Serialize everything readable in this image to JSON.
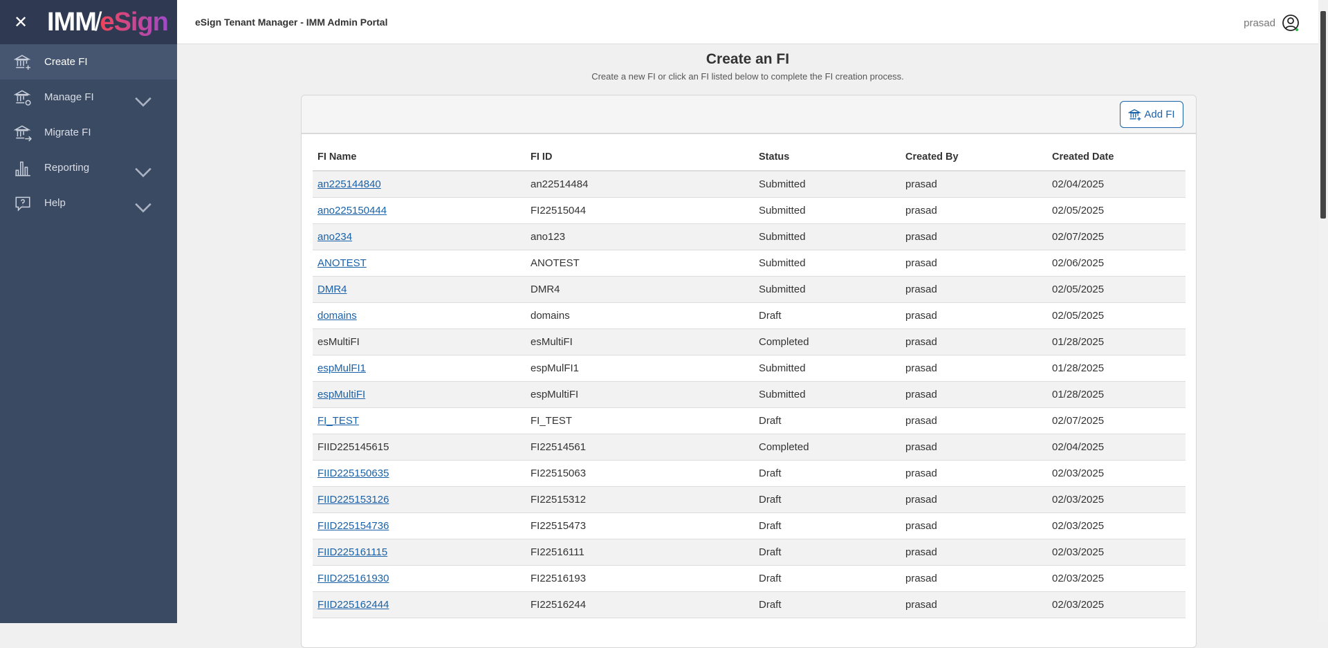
{
  "app": {
    "logo_text_1": "IMM",
    "logo_text_2": "eSign",
    "header_title": "eSign Tenant Manager - IMM Admin Portal",
    "user_name": "prasad",
    "accent": "#1a61a8",
    "online_status_color": "#2eb84b"
  },
  "sidebar": {
    "items": [
      {
        "label": "Create FI",
        "icon": "bank-plus-icon",
        "active": true,
        "expandable": false
      },
      {
        "label": "Manage FI",
        "icon": "bank-gear-icon",
        "expandable": true
      },
      {
        "label": "Migrate FI",
        "icon": "bank-arrow-icon",
        "expandable": false
      },
      {
        "label": "Reporting",
        "icon": "bar-chart-icon",
        "expandable": true
      },
      {
        "label": "Help",
        "icon": "help-bubble-icon",
        "expandable": true
      }
    ]
  },
  "main": {
    "title": "Create an FI",
    "subtitle": "Create a new FI or click an FI listed below to complete the FI creation process.",
    "add_button": "Add FI",
    "columns": [
      "FI Name",
      "FI ID",
      "Status",
      "Created By",
      "Created Date"
    ],
    "rows": [
      {
        "name": "an225144840",
        "id": "an22514484",
        "status": "Submitted",
        "by": "prasad",
        "date": "02/04/2025",
        "link": true
      },
      {
        "name": "ano225150444",
        "id": "FI22515044",
        "status": "Submitted",
        "by": "prasad",
        "date": "02/05/2025",
        "link": true
      },
      {
        "name": "ano234",
        "id": "ano123",
        "status": "Submitted",
        "by": "prasad",
        "date": "02/07/2025",
        "link": true
      },
      {
        "name": "ANOTEST",
        "id": "ANOTEST",
        "status": "Submitted",
        "by": "prasad",
        "date": "02/06/2025",
        "link": true
      },
      {
        "name": "DMR4",
        "id": "DMR4",
        "status": "Submitted",
        "by": "prasad",
        "date": "02/05/2025",
        "link": true
      },
      {
        "name": "domains",
        "id": "domains",
        "status": "Draft",
        "by": "prasad",
        "date": "02/05/2025",
        "link": true
      },
      {
        "name": "esMultiFI",
        "id": "esMultiFI",
        "status": "Completed",
        "by": "prasad",
        "date": "01/28/2025",
        "link": false
      },
      {
        "name": "espMulFI1",
        "id": "espMulFI1",
        "status": "Submitted",
        "by": "prasad",
        "date": "01/28/2025",
        "link": true
      },
      {
        "name": "espMultiFI",
        "id": "espMultiFI",
        "status": "Submitted",
        "by": "prasad",
        "date": "01/28/2025",
        "link": true
      },
      {
        "name": "FI_TEST",
        "id": "FI_TEST",
        "status": "Draft",
        "by": "prasad",
        "date": "02/07/2025",
        "link": true
      },
      {
        "name": "FIID225145615",
        "id": "FI22514561",
        "status": "Completed",
        "by": "prasad",
        "date": "02/04/2025",
        "link": false
      },
      {
        "name": "FIID225150635",
        "id": "FI22515063",
        "status": "Draft",
        "by": "prasad",
        "date": "02/03/2025",
        "link": true
      },
      {
        "name": "FIID225153126",
        "id": "FI22515312",
        "status": "Draft",
        "by": "prasad",
        "date": "02/03/2025",
        "link": true
      },
      {
        "name": "FIID225154736",
        "id": "FI22515473",
        "status": "Draft",
        "by": "prasad",
        "date": "02/03/2025",
        "link": true
      },
      {
        "name": "FIID225161115",
        "id": "FI22516111",
        "status": "Draft",
        "by": "prasad",
        "date": "02/03/2025",
        "link": true
      },
      {
        "name": "FIID225161930",
        "id": "FI22516193",
        "status": "Draft",
        "by": "prasad",
        "date": "02/03/2025",
        "link": true
      },
      {
        "name": "FIID225162444",
        "id": "FI22516244",
        "status": "Draft",
        "by": "prasad",
        "date": "02/03/2025",
        "link": true
      }
    ]
  }
}
